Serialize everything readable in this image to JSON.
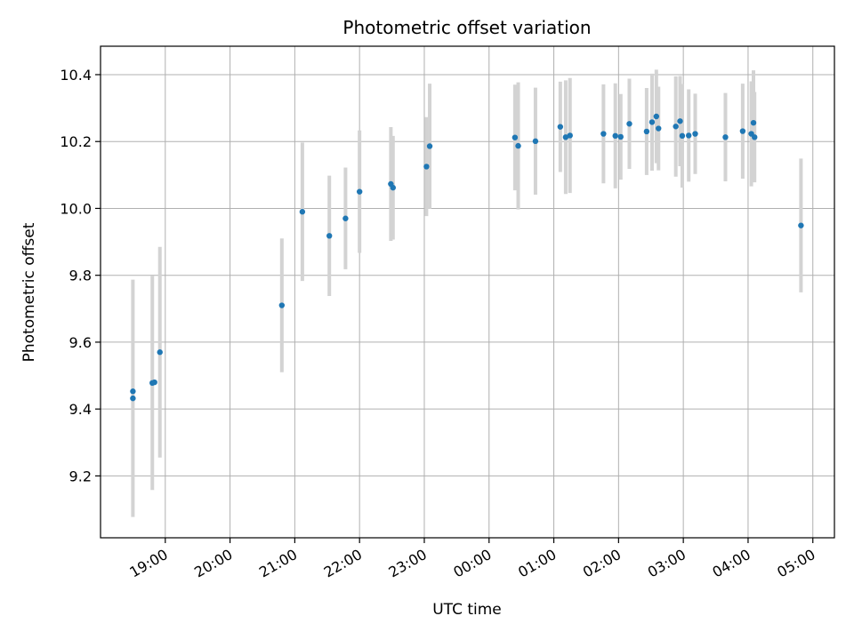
{
  "chart_data": {
    "type": "scatter",
    "title": "Photometric offset variation",
    "xlabel": "UTC time",
    "ylabel": "Photometric offset",
    "x_tick_labels": [
      "19:00",
      "20:00",
      "21:00",
      "22:00",
      "23:00",
      "00:00",
      "01:00",
      "02:00",
      "03:00",
      "04:00",
      "05:00"
    ],
    "y_tick_labels": [
      "9.2",
      "9.4",
      "9.6",
      "9.8",
      "10.0",
      "10.2",
      "10.4"
    ],
    "xlim": [
      "18:00",
      "05:20"
    ],
    "ylim": [
      9.015,
      10.485
    ],
    "grid": true,
    "point_color": "#1f77b4",
    "errorbar_color": "#d3d3d3",
    "points": [
      {
        "x": "18:30",
        "y": 9.453,
        "err": 0.0
      },
      {
        "x": "18:30",
        "y": 9.432,
        "err": 0.355
      },
      {
        "x": "18:48",
        "y": 9.478,
        "err": 0.32
      },
      {
        "x": "18:50",
        "y": 9.48,
        "err": 0.0
      },
      {
        "x": "18:55",
        "y": 9.57,
        "err": 0.315
      },
      {
        "x": "20:48",
        "y": 9.71,
        "err": 0.2
      },
      {
        "x": "21:07",
        "y": 9.99,
        "err": 0.207
      },
      {
        "x": "21:32",
        "y": 9.918,
        "err": 0.18
      },
      {
        "x": "21:47",
        "y": 9.97,
        "err": 0.152
      },
      {
        "x": "22:00",
        "y": 10.05,
        "err": 0.183
      },
      {
        "x": "22:29",
        "y": 10.073,
        "err": 0.17
      },
      {
        "x": "22:31",
        "y": 10.062,
        "err": 0.155
      },
      {
        "x": "23:02",
        "y": 10.125,
        "err": 0.148
      },
      {
        "x": "23:05",
        "y": 10.186,
        "err": 0.187
      },
      {
        "x": "00:24",
        "y": 10.212,
        "err": 0.158
      },
      {
        "x": "00:27",
        "y": 10.187,
        "err": 0.19
      },
      {
        "x": "00:43",
        "y": 10.201,
        "err": 0.16
      },
      {
        "x": "01:06",
        "y": 10.244,
        "err": 0.135
      },
      {
        "x": "01:11",
        "y": 10.213,
        "err": 0.17
      },
      {
        "x": "01:15",
        "y": 10.218,
        "err": 0.172
      },
      {
        "x": "01:46",
        "y": 10.223,
        "err": 0.148
      },
      {
        "x": "01:57",
        "y": 10.217,
        "err": 0.157
      },
      {
        "x": "02:02",
        "y": 10.214,
        "err": 0.128
      },
      {
        "x": "02:10",
        "y": 10.253,
        "err": 0.135
      },
      {
        "x": "02:26",
        "y": 10.23,
        "err": 0.13
      },
      {
        "x": "02:31",
        "y": 10.258,
        "err": 0.145
      },
      {
        "x": "02:35",
        "y": 10.275,
        "err": 0.14
      },
      {
        "x": "02:37",
        "y": 10.239,
        "err": 0.125
      },
      {
        "x": "02:53",
        "y": 10.245,
        "err": 0.15
      },
      {
        "x": "02:57",
        "y": 10.261,
        "err": 0.135
      },
      {
        "x": "02:59",
        "y": 10.217,
        "err": 0.155
      },
      {
        "x": "03:05",
        "y": 10.218,
        "err": 0.138
      },
      {
        "x": "03:11",
        "y": 10.223,
        "err": 0.12
      },
      {
        "x": "03:39",
        "y": 10.213,
        "err": 0.132
      },
      {
        "x": "03:55",
        "y": 10.231,
        "err": 0.142
      },
      {
        "x": "04:03",
        "y": 10.223,
        "err": 0.157
      },
      {
        "x": "04:05",
        "y": 10.256,
        "err": 0.157
      },
      {
        "x": "04:06",
        "y": 10.213,
        "err": 0.135
      },
      {
        "x": "04:49",
        "y": 9.949,
        "err": 0.2
      }
    ]
  }
}
